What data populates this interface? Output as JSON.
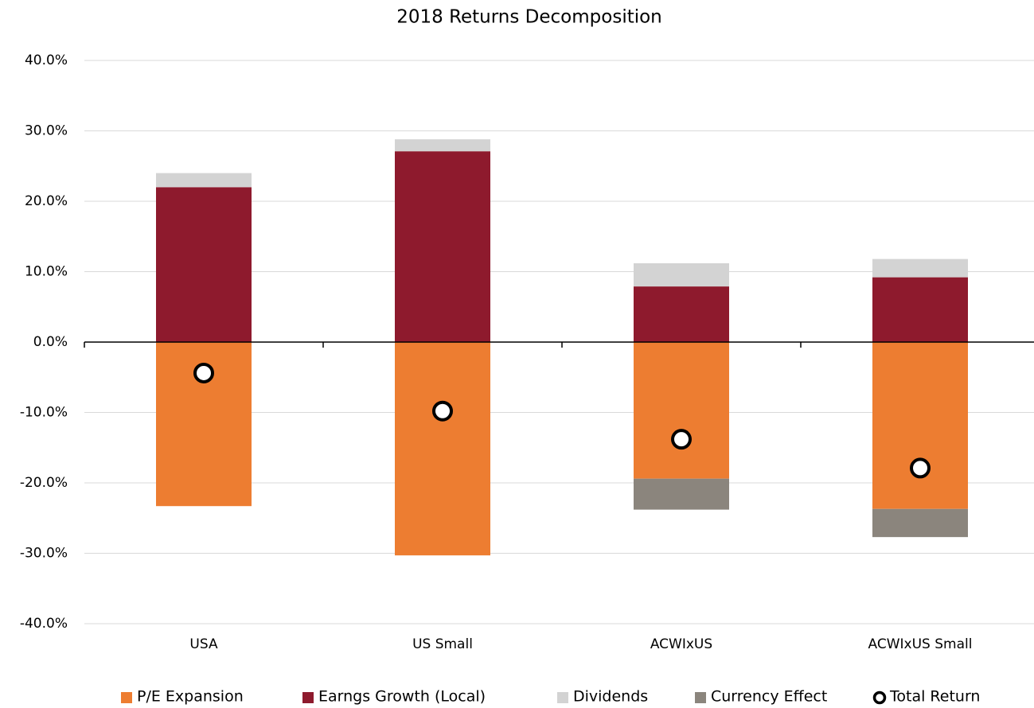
{
  "chart_data": {
    "type": "bar",
    "stacked": true,
    "title": "2018 Returns Decomposition",
    "categories": [
      "USA",
      "US Small",
      "ACWIxUS",
      "ACWIxUS Small"
    ],
    "series": [
      {
        "name": "P/E Expansion",
        "color": "#ed7d31",
        "values": [
          -23.3,
          -30.3,
          -19.4,
          -23.7
        ]
      },
      {
        "name": "Earngs Growth (Local)",
        "color": "#8e1a2d",
        "values": [
          22.0,
          27.1,
          7.9,
          9.2
        ]
      },
      {
        "name": "Dividends",
        "color": "#d3d3d3",
        "values": [
          2.0,
          1.7,
          3.3,
          2.6
        ]
      },
      {
        "name": "Currency Effect",
        "color": "#8b857d",
        "values": [
          0,
          0,
          -4.4,
          -4.0
        ]
      },
      {
        "name": "Total Return",
        "type": "scatter",
        "color": "#ffffff",
        "values": [
          -4.4,
          -9.8,
          -13.8,
          -17.9
        ]
      }
    ],
    "ylim": [
      -40,
      40
    ],
    "yticks": [
      {
        "value": -40,
        "label": "-40.0%"
      },
      {
        "value": -30,
        "label": "-30.0%"
      },
      {
        "value": -20,
        "label": "-20.0%"
      },
      {
        "value": -10,
        "label": "-10.0%"
      },
      {
        "value": 0,
        "label": "0.0%"
      },
      {
        "value": 10,
        "label": "10.0%"
      },
      {
        "value": 20,
        "label": "20.0%"
      },
      {
        "value": 30,
        "label": "30.0%"
      },
      {
        "value": 40,
        "label": "40.0%"
      }
    ],
    "grid": true,
    "legend": "bottom"
  }
}
